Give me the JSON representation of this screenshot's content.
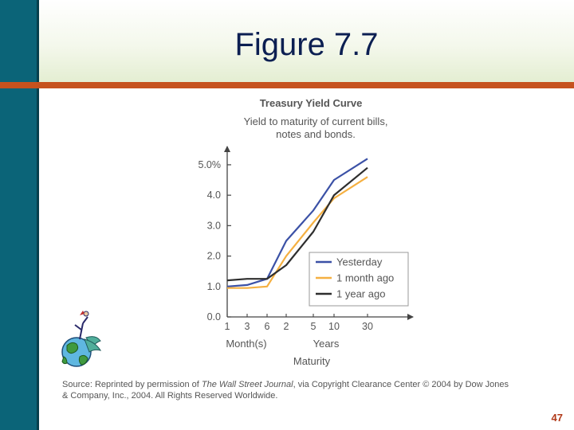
{
  "slide": {
    "title": "Figure 7.7",
    "page_number": "47"
  },
  "colors": {
    "sidebar": "#0b6478",
    "rule": "#c6521e",
    "title_text": "#0c1f52",
    "yesterday": "#3b51a6",
    "month_ago": "#f5b041",
    "year_ago": "#2e2e2e"
  },
  "icons": [
    "globe-with-figure-clipart"
  ],
  "chart_data": {
    "type": "line",
    "title": "Treasury Yield Curve",
    "subtitle_line1": "Yield to maturity of current bills,",
    "subtitle_line2": "notes and bonds.",
    "y_tick_labels": [
      "5.0%",
      "4.0",
      "3.0",
      "2.0",
      "1.0",
      "0.0"
    ],
    "y_ticks": [
      5,
      4,
      3,
      2,
      1,
      0
    ],
    "ylim": [
      0,
      5.6
    ],
    "x_tick_labels": [
      "1",
      "3",
      "6",
      "2",
      "5",
      "10",
      "30"
    ],
    "x_tick_index": [
      0,
      1,
      2,
      3,
      4,
      5,
      6
    ],
    "x_group_labels": {
      "months": "Month(s)",
      "years": "Years"
    },
    "xlabel": "Maturity",
    "legend_position": "center-right",
    "series": [
      {
        "name": "Yesterday",
        "color": "#3b51a6",
        "values": [
          1.0,
          1.05,
          1.25,
          2.5,
          3.5,
          4.5,
          5.2
        ]
      },
      {
        "name": "1 month ago",
        "color": "#f5b041",
        "values": [
          0.95,
          0.95,
          1.0,
          2.0,
          3.1,
          3.9,
          4.6
        ]
      },
      {
        "name": "1 year ago",
        "color": "#2e2e2e",
        "values": [
          1.2,
          1.25,
          1.25,
          1.7,
          2.8,
          4.0,
          4.9
        ]
      }
    ],
    "source": {
      "label": "Source:",
      "line1_pre": " Reprinted by permission of ",
      "line1_italic": "The Wall Street Journal",
      "line1_post": ", via Copyright Clearance Center © 2004 by Dow Jones",
      "line2": "& Company, Inc., 2004. All Rights Reserved Worldwide."
    }
  }
}
